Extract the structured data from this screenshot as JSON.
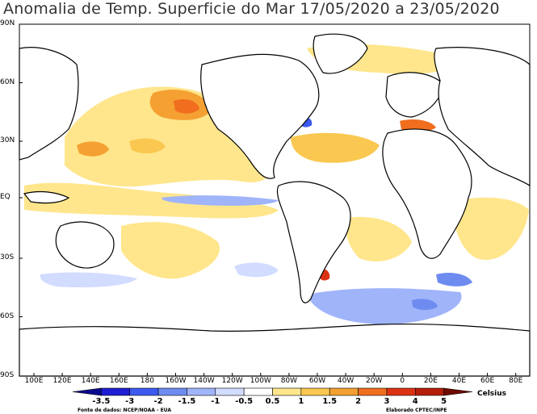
{
  "title": "Anomalia de Temp. Superficie do Mar 17/05/2020 a 23/05/2020",
  "lat_labels": [
    "90N",
    "60N",
    "30N",
    "EQ",
    "30S",
    "60S",
    "90S"
  ],
  "lon_labels": [
    "100E",
    "120E",
    "140E",
    "160E",
    "180",
    "160W",
    "140W",
    "120W",
    "100W",
    "80W",
    "60W",
    "40W",
    "20W",
    "0",
    "20E",
    "40E",
    "60E",
    "80E"
  ],
  "legend": {
    "unit": "Celsius",
    "ticks": [
      "-3.5",
      "-3",
      "-2",
      "-1.5",
      "-1",
      "-0.5",
      "0.5",
      "1",
      "1.5",
      "2",
      "3",
      "4",
      "5"
    ],
    "colors": [
      "#0a0a8c",
      "#1e1ed2",
      "#3c5af0",
      "#6e8cf0",
      "#a0b4fa",
      "#d2dcff",
      "#ffffff",
      "#ffe68c",
      "#fac850",
      "#f5a032",
      "#f06e1e",
      "#dc3214",
      "#b41e0a",
      "#6e0a00"
    ]
  },
  "source": "Fonte de dados: NCEP/NOAA - EUA",
  "author": "Elaborado CPTEC/INPE",
  "palette": {
    "warm_light": "#ffe68c",
    "warm_mid": "#fac850",
    "warm_orange": "#f5a032",
    "warm_deep": "#f06e1e",
    "warm_red": "#dc3214",
    "cool_light": "#d2dcff",
    "cool_mid": "#a0b4fa",
    "cool_deep": "#6e8cf0",
    "cool_strong": "#3c5af0"
  }
}
